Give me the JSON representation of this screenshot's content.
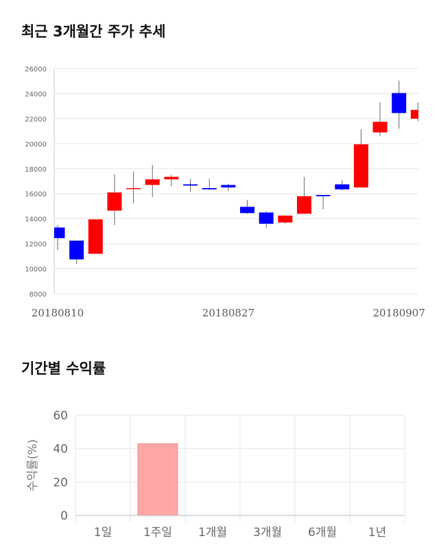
{
  "sections": {
    "price_title": "최근 3개월간 주가 추세",
    "return_title": "기간별 수익률"
  },
  "chart_data": [
    {
      "type": "candlestick",
      "ylim": [
        8000,
        26000
      ],
      "yticks": [
        8000,
        10000,
        12000,
        14000,
        16000,
        18000,
        20000,
        22000,
        24000,
        26000
      ],
      "x_tick_labels": [
        {
          "index": 0,
          "label": "20180810"
        },
        {
          "index": 9,
          "label": "20180827"
        },
        {
          "index": 18,
          "label": "20180907"
        }
      ],
      "up_color": "#ff0000",
      "down_color": "#0000ff",
      "candles": [
        {
          "open": 13300,
          "close": 12450,
          "high": 13500,
          "low": 11500
        },
        {
          "open": 12250,
          "close": 10750,
          "high": 12250,
          "low": 10400
        },
        {
          "open": 11200,
          "close": 13950,
          "high": 13950,
          "low": 11200
        },
        {
          "open": 14650,
          "close": 16100,
          "high": 17550,
          "low": 13500
        },
        {
          "open": 16400,
          "close": 16450,
          "high": 17800,
          "low": 15250
        },
        {
          "open": 16700,
          "close": 17150,
          "high": 18300,
          "low": 15750
        },
        {
          "open": 17150,
          "close": 17350,
          "high": 17500,
          "low": 16600
        },
        {
          "open": 16750,
          "close": 16650,
          "high": 17200,
          "low": 16150
        },
        {
          "open": 16450,
          "close": 16350,
          "high": 17200,
          "low": 16300
        },
        {
          "open": 16700,
          "close": 16500,
          "high": 16800,
          "low": 16200
        },
        {
          "open": 14950,
          "close": 14450,
          "high": 15500,
          "low": 14400
        },
        {
          "open": 14500,
          "close": 13600,
          "high": 14600,
          "low": 13250
        },
        {
          "open": 13700,
          "close": 14250,
          "high": 14250,
          "low": 13600
        },
        {
          "open": 14400,
          "close": 15800,
          "high": 17350,
          "low": 14400
        },
        {
          "open": 15900,
          "close": 15800,
          "high": 15900,
          "low": 14750
        },
        {
          "open": 16750,
          "close": 16350,
          "high": 17100,
          "low": 16250
        },
        {
          "open": 16500,
          "close": 19950,
          "high": 21150,
          "low": 16500
        },
        {
          "open": 20900,
          "close": 21750,
          "high": 23300,
          "low": 20600
        },
        {
          "open": 24050,
          "close": 22450,
          "high": 25050,
          "low": 21200
        },
        {
          "open": 22000,
          "close": 22700,
          "high": 23300,
          "low": 21800
        }
      ]
    },
    {
      "type": "bar",
      "ylabel": "수익률(%)",
      "ylim": [
        0,
        60
      ],
      "yticks": [
        0,
        20,
        40,
        60
      ],
      "grid": true,
      "categories": [
        "1일",
        "1주일",
        "1개월",
        "3개월",
        "6개월",
        "1년"
      ],
      "values": [
        0,
        43,
        0,
        0,
        0,
        0
      ],
      "bar_color": "#ffa6a6"
    }
  ]
}
